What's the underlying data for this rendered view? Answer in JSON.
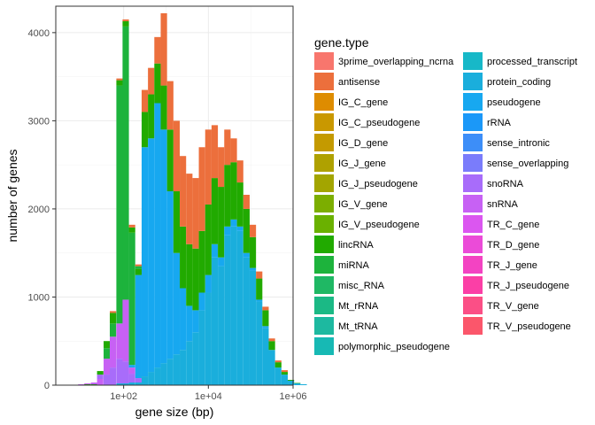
{
  "chart_data": {
    "type": "bar",
    "subtype": "stacked-histogram",
    "x_scale": "log10",
    "xlabel": "gene size (bp)",
    "ylabel": "number of genes",
    "xlim": [
      2.5,
      1000000
    ],
    "ylim": [
      0,
      4300
    ],
    "x_ticks": [
      {
        "value": 100,
        "label": "1e+02"
      },
      {
        "value": 10000,
        "label": "1e+04"
      },
      {
        "value": 1000000,
        "label": "1e+06"
      }
    ],
    "y_ticks": [
      {
        "value": 0,
        "label": "0"
      },
      {
        "value": 1000,
        "label": "1000"
      },
      {
        "value": 2000,
        "label": "2000"
      },
      {
        "value": 3000,
        "label": "3000"
      },
      {
        "value": 4000,
        "label": "4000"
      }
    ],
    "grid": true,
    "legend_position": "right",
    "legend_title": "gene.type",
    "legend_items": [
      {
        "label": "3prime_overlapping_ncrna",
        "color": "#F8766D"
      },
      {
        "label": "antisense",
        "color": "#EC6F3C"
      },
      {
        "label": "IG_C_gene",
        "color": "#DE8C00"
      },
      {
        "label": "IG_C_pseudogene",
        "color": "#C99800"
      },
      {
        "label": "IG_D_gene",
        "color": "#C49A00"
      },
      {
        "label": "IG_J_gene",
        "color": "#AFA100"
      },
      {
        "label": "IG_J_pseudogene",
        "color": "#A3A500"
      },
      {
        "label": "IG_V_gene",
        "color": "#7CAE00"
      },
      {
        "label": "IG_V_pseudogene",
        "color": "#6AB100"
      },
      {
        "label": "lincRNA",
        "color": "#21AA00"
      },
      {
        "label": "miRNA",
        "color": "#1DB33C"
      },
      {
        "label": "misc_RNA",
        "color": "#1FB864"
      },
      {
        "label": "Mt_rRNA",
        "color": "#1BB985"
      },
      {
        "label": "Mt_tRNA",
        "color": "#1DB9A0"
      },
      {
        "label": "polymorphic_pseudogene",
        "color": "#17B9B4"
      },
      {
        "label": "processed_transcript",
        "color": "#17B8C8"
      },
      {
        "label": "protein_coding",
        "color": "#1AAEDC"
      },
      {
        "label": "pseudogene",
        "color": "#17A8F0"
      },
      {
        "label": "rRNA",
        "color": "#1B98F8"
      },
      {
        "label": "sense_intronic",
        "color": "#3D8EF8"
      },
      {
        "label": "sense_overlapping",
        "color": "#7A7CFB"
      },
      {
        "label": "snoRNA",
        "color": "#A86CFA"
      },
      {
        "label": "snRNA",
        "color": "#C761F4"
      },
      {
        "label": "TR_C_gene",
        "color": "#DB56F0"
      },
      {
        "label": "TR_D_gene",
        "color": "#EB4BD8"
      },
      {
        "label": "TR_J_gene",
        "color": "#F343C2"
      },
      {
        "label": "TR_J_pseudogene",
        "color": "#FB3FA6"
      },
      {
        "label": "TR_V_gene",
        "color": "#FB4F86"
      },
      {
        "label": "TR_V_pseudogene",
        "color": "#FB566B"
      }
    ],
    "bin_width_log10": 0.15,
    "bins": [
      {
        "x": 10,
        "segments": [
          {
            "type": "lincRNA",
            "value": 5
          },
          {
            "type": "snRNA",
            "value": 5
          }
        ]
      },
      {
        "x": 14,
        "segments": [
          {
            "type": "lincRNA",
            "value": 10
          },
          {
            "type": "snRNA",
            "value": 10
          }
        ]
      },
      {
        "x": 20,
        "segments": [
          {
            "type": "lincRNA",
            "value": 10
          },
          {
            "type": "snoRNA",
            "value": 5
          },
          {
            "type": "snRNA",
            "value": 15
          }
        ]
      },
      {
        "x": 28,
        "segments": [
          {
            "type": "snRNA",
            "value": 70
          },
          {
            "type": "snoRNA",
            "value": 50
          },
          {
            "type": "lincRNA",
            "value": 40
          }
        ]
      },
      {
        "x": 40,
        "segments": [
          {
            "type": "snoRNA",
            "value": 120
          },
          {
            "type": "snRNA",
            "value": 180
          },
          {
            "type": "miRNA",
            "value": 120
          },
          {
            "type": "lincRNA",
            "value": 80
          }
        ]
      },
      {
        "x": 56,
        "segments": [
          {
            "type": "snoRNA",
            "value": 200
          },
          {
            "type": "snRNA",
            "value": 350
          },
          {
            "type": "miRNA",
            "value": 150
          },
          {
            "type": "lincRNA",
            "value": 120
          },
          {
            "type": "antisense",
            "value": 20
          }
        ]
      },
      {
        "x": 80,
        "segments": [
          {
            "type": "protein_coding",
            "value": 20
          },
          {
            "type": "snoRNA",
            "value": 280
          },
          {
            "type": "snRNA",
            "value": 400
          },
          {
            "type": "miRNA",
            "value": 2700
          },
          {
            "type": "lincRNA",
            "value": 60
          },
          {
            "type": "antisense",
            "value": 20
          }
        ]
      },
      {
        "x": 112,
        "segments": [
          {
            "type": "protein_coding",
            "value": 20
          },
          {
            "type": "snoRNA",
            "value": 250
          },
          {
            "type": "snRNA",
            "value": 700
          },
          {
            "type": "miRNA",
            "value": 3100
          },
          {
            "type": "lincRNA",
            "value": 60
          },
          {
            "type": "antisense",
            "value": 20
          }
        ]
      },
      {
        "x": 158,
        "segments": [
          {
            "type": "protein_coding",
            "value": 30
          },
          {
            "type": "snoRNA",
            "value": 100
          },
          {
            "type": "snRNA",
            "value": 70
          },
          {
            "type": "pseudogene",
            "value": 30
          },
          {
            "type": "miRNA",
            "value": 1500
          },
          {
            "type": "lincRNA",
            "value": 60
          },
          {
            "type": "antisense",
            "value": 30
          }
        ]
      },
      {
        "x": 224,
        "segments": [
          {
            "type": "protein_coding",
            "value": 30
          },
          {
            "type": "snoRNA",
            "value": 50
          },
          {
            "type": "pseudogene",
            "value": 1170
          },
          {
            "type": "lincRNA",
            "value": 70
          },
          {
            "type": "miRNA",
            "value": 30
          },
          {
            "type": "antisense",
            "value": 20
          }
        ]
      },
      {
        "x": 316,
        "segments": [
          {
            "type": "protein_coding",
            "value": 100
          },
          {
            "type": "pseudogene",
            "value": 2600
          },
          {
            "type": "lincRNA",
            "value": 400
          },
          {
            "type": "antisense",
            "value": 250
          }
        ]
      },
      {
        "x": 446,
        "segments": [
          {
            "type": "protein_coding",
            "value": 150
          },
          {
            "type": "pseudogene",
            "value": 2650
          },
          {
            "type": "lincRNA",
            "value": 500
          },
          {
            "type": "antisense",
            "value": 300
          }
        ]
      },
      {
        "x": 630,
        "segments": [
          {
            "type": "protein_coding",
            "value": 200
          },
          {
            "type": "pseudogene",
            "value": 3000
          },
          {
            "type": "lincRNA",
            "value": 450
          },
          {
            "type": "antisense",
            "value": 300
          }
        ]
      },
      {
        "x": 891,
        "segments": [
          {
            "type": "protein_coding",
            "value": 250
          },
          {
            "type": "pseudogene",
            "value": 2650
          },
          {
            "type": "lincRNA",
            "value": 500
          },
          {
            "type": "antisense",
            "value": 820
          }
        ]
      },
      {
        "x": 1259,
        "segments": [
          {
            "type": "protein_coding",
            "value": 300
          },
          {
            "type": "pseudogene",
            "value": 1900
          },
          {
            "type": "lincRNA",
            "value": 700
          },
          {
            "type": "antisense",
            "value": 550
          }
        ]
      },
      {
        "x": 1778,
        "segments": [
          {
            "type": "protein_coding",
            "value": 350
          },
          {
            "type": "pseudogene",
            "value": 1150
          },
          {
            "type": "lincRNA",
            "value": 700
          },
          {
            "type": "antisense",
            "value": 800
          }
        ]
      },
      {
        "x": 2512,
        "segments": [
          {
            "type": "protein_coding",
            "value": 400
          },
          {
            "type": "pseudogene",
            "value": 700
          },
          {
            "type": "lincRNA",
            "value": 700
          },
          {
            "type": "antisense",
            "value": 800
          }
        ]
      },
      {
        "x": 3548,
        "segments": [
          {
            "type": "protein_coding",
            "value": 500
          },
          {
            "type": "pseudogene",
            "value": 400
          },
          {
            "type": "lincRNA",
            "value": 700
          },
          {
            "type": "antisense",
            "value": 800
          }
        ]
      },
      {
        "x": 5012,
        "segments": [
          {
            "type": "protein_coding",
            "value": 600
          },
          {
            "type": "pseudogene",
            "value": 250
          },
          {
            "type": "lincRNA",
            "value": 700
          },
          {
            "type": "antisense",
            "value": 800
          }
        ]
      },
      {
        "x": 7079,
        "segments": [
          {
            "type": "protein_coding",
            "value": 850
          },
          {
            "type": "pseudogene",
            "value": 200
          },
          {
            "type": "lincRNA",
            "value": 700
          },
          {
            "type": "antisense",
            "value": 950
          }
        ]
      },
      {
        "x": 10000,
        "segments": [
          {
            "type": "protein_coding",
            "value": 1050
          },
          {
            "type": "pseudogene",
            "value": 200
          },
          {
            "type": "lincRNA",
            "value": 800
          },
          {
            "type": "antisense",
            "value": 850
          }
        ]
      },
      {
        "x": 14125,
        "segments": [
          {
            "type": "protein_coding",
            "value": 1450
          },
          {
            "type": "pseudogene",
            "value": 150
          },
          {
            "type": "lincRNA",
            "value": 750
          },
          {
            "type": "antisense",
            "value": 600
          }
        ]
      },
      {
        "x": 19953,
        "segments": [
          {
            "type": "protein_coding",
            "value": 1350
          },
          {
            "type": "pseudogene",
            "value": 100
          },
          {
            "type": "lincRNA",
            "value": 800
          },
          {
            "type": "antisense",
            "value": 450
          }
        ]
      },
      {
        "x": 28184,
        "segments": [
          {
            "type": "protein_coding",
            "value": 1700
          },
          {
            "type": "pseudogene",
            "value": 100
          },
          {
            "type": "lincRNA",
            "value": 700
          },
          {
            "type": "antisense",
            "value": 400
          }
        ]
      },
      {
        "x": 39811,
        "segments": [
          {
            "type": "protein_coding",
            "value": 1800
          },
          {
            "type": "pseudogene",
            "value": 80
          },
          {
            "type": "lincRNA",
            "value": 650
          },
          {
            "type": "antisense",
            "value": 270
          }
        ]
      },
      {
        "x": 56234,
        "segments": [
          {
            "type": "protein_coding",
            "value": 1750
          },
          {
            "type": "pseudogene",
            "value": 50
          },
          {
            "type": "lincRNA",
            "value": 500
          },
          {
            "type": "antisense",
            "value": 250
          }
        ]
      },
      {
        "x": 79433,
        "segments": [
          {
            "type": "protein_coding",
            "value": 1450
          },
          {
            "type": "pseudogene",
            "value": 50
          },
          {
            "type": "lincRNA",
            "value": 500
          },
          {
            "type": "antisense",
            "value": 160
          }
        ]
      },
      {
        "x": 112202,
        "segments": [
          {
            "type": "protein_coding",
            "value": 1300
          },
          {
            "type": "pseudogene",
            "value": 30
          },
          {
            "type": "lincRNA",
            "value": 350
          },
          {
            "type": "antisense",
            "value": 140
          }
        ]
      },
      {
        "x": 158489,
        "segments": [
          {
            "type": "protein_coding",
            "value": 950
          },
          {
            "type": "pseudogene",
            "value": 20
          },
          {
            "type": "lincRNA",
            "value": 240
          },
          {
            "type": "antisense",
            "value": 80
          }
        ]
      },
      {
        "x": 223872,
        "segments": [
          {
            "type": "protein_coding",
            "value": 650
          },
          {
            "type": "pseudogene",
            "value": 20
          },
          {
            "type": "lincRNA",
            "value": 180
          },
          {
            "type": "antisense",
            "value": 40
          }
        ]
      },
      {
        "x": 316228,
        "segments": [
          {
            "type": "protein_coding",
            "value": 400
          },
          {
            "type": "lincRNA",
            "value": 100
          },
          {
            "type": "antisense",
            "value": 30
          }
        ]
      },
      {
        "x": 446684,
        "segments": [
          {
            "type": "protein_coding",
            "value": 200
          },
          {
            "type": "lincRNA",
            "value": 60
          },
          {
            "type": "antisense",
            "value": 20
          }
        ]
      },
      {
        "x": 630957,
        "segments": [
          {
            "type": "protein_coding",
            "value": 120
          },
          {
            "type": "lincRNA",
            "value": 30
          },
          {
            "type": "antisense",
            "value": 20
          }
        ]
      },
      {
        "x": 891251,
        "segments": [
          {
            "type": "protein_coding",
            "value": 50
          },
          {
            "type": "lincRNA",
            "value": 10
          }
        ]
      },
      {
        "x": 1258925,
        "segments": [
          {
            "type": "protein_coding",
            "value": 20
          },
          {
            "type": "lincRNA",
            "value": 5
          }
        ]
      },
      {
        "x": 1778279,
        "segments": [
          {
            "type": "protein_coding",
            "value": 10
          }
        ]
      }
    ]
  }
}
